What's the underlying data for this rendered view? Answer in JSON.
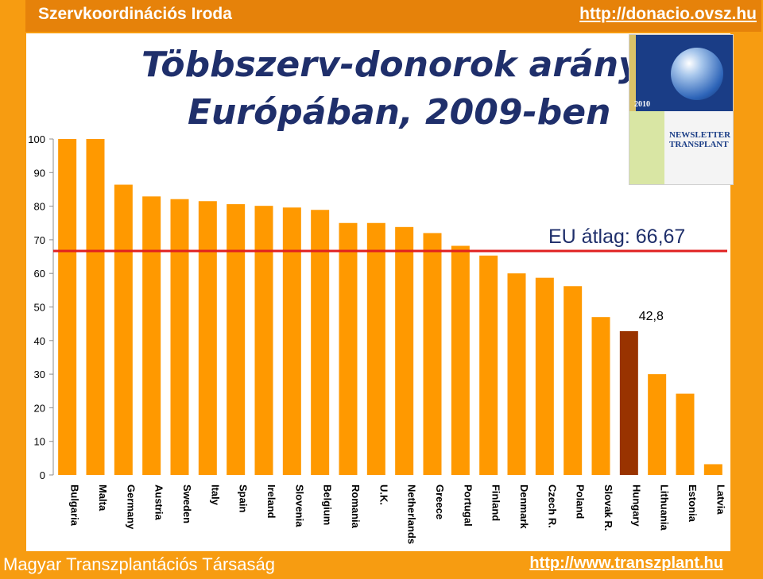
{
  "header": {
    "title": "Szervkoordinációs Iroda",
    "url": "http://donacio.ovsz.hu"
  },
  "footer": {
    "org": "Magyar Transzplantációs Társaság",
    "url": "http://www.transzplant.hu"
  },
  "cover": {
    "year": "2010",
    "newsletter": "NEWSLETTER TRANSPLANT"
  },
  "chart_data": {
    "type": "bar",
    "title_line1": "Többszerv-donorok aránya",
    "title_line2": "Európában, 2009-ben",
    "categories": [
      "Bulgaria",
      "Malta",
      "Germany",
      "Austria",
      "Sweden",
      "Italy",
      "Spain",
      "Ireland",
      "Slovenia",
      "Belgium",
      "Romania",
      "U.K.",
      "Netherlands",
      "Greece",
      "Portugal",
      "Finland",
      "Denmark",
      "Czech R.",
      "Poland",
      "Slovak R.",
      "Hungary",
      "Lithuania",
      "Estonia",
      "Latvia"
    ],
    "values": [
      100,
      100,
      86.4,
      82.9,
      82.1,
      81.5,
      80.6,
      80.1,
      79.6,
      78.9,
      75.0,
      75.0,
      73.8,
      72.0,
      68.2,
      65.3,
      60.0,
      58.7,
      56.2,
      47.0,
      42.8,
      30.0,
      24.2,
      3.2
    ],
    "highlight": "Hungary",
    "highlight_label": "42,8",
    "ylim": [
      0,
      100
    ],
    "yticks": [
      0,
      10,
      20,
      30,
      40,
      50,
      60,
      70,
      80,
      90,
      100
    ],
    "reference_line": {
      "value": 66.67,
      "label": "EU átlag: 66,67",
      "color": "#e02020"
    },
    "colors": {
      "bar": "#ff9900",
      "highlight": "#993300"
    },
    "grid": false
  }
}
